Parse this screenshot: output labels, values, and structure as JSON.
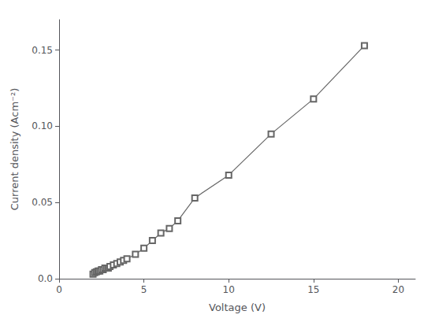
{
  "chart_data": {
    "type": "line",
    "x": [
      2.0,
      2.1,
      2.2,
      2.3,
      2.4,
      2.5,
      2.6,
      2.7,
      2.8,
      2.9,
      3.0,
      3.2,
      3.4,
      3.6,
      3.8,
      4.0,
      4.5,
      5.0,
      5.5,
      6.0,
      6.5,
      7.0,
      8.0,
      10.0,
      12.5,
      15.0,
      18.0
    ],
    "values": [
      0.003,
      0.004,
      0.0045,
      0.005,
      0.005,
      0.006,
      0.006,
      0.007,
      0.007,
      0.007,
      0.008,
      0.009,
      0.01,
      0.011,
      0.012,
      0.013,
      0.016,
      0.02,
      0.025,
      0.03,
      0.033,
      0.038,
      0.053,
      0.068,
      0.095,
      0.118,
      0.153
    ],
    "x_label": "Voltage (V)",
    "y_label": "Current density (Acm⁻²)",
    "xlim": [
      0,
      21
    ],
    "ylim": [
      0.0,
      0.17
    ],
    "xticks": [
      0,
      5,
      10,
      15,
      20
    ],
    "yticks": [
      {
        "value": 0.0,
        "label": "0.0"
      },
      0.05,
      {
        "value": 0.1,
        "label": "0.10"
      },
      0.15
    ],
    "color": "#666666",
    "marker": "square",
    "grid": false
  }
}
